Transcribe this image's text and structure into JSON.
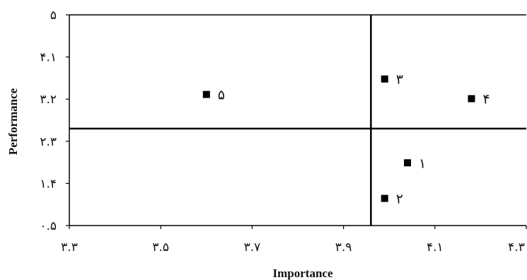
{
  "chart_data": {
    "type": "scatter",
    "title": "",
    "xlabel": "Importance",
    "ylabel": "Performance",
    "xlim": [
      3.3,
      4.3
    ],
    "ylim": [
      0.5,
      5
    ],
    "x_tick_labels": [
      "۳.۳",
      "۳.۵",
      "۳.۷",
      "۳.۹",
      "۴.۱",
      "۴.۳"
    ],
    "y_tick_labels": [
      "۵",
      "۴.۱",
      "۳.۲",
      "۲.۳",
      "۱.۴",
      "۰.۵"
    ],
    "grid": false,
    "quadrant_lines": {
      "x": 3.96,
      "y": 2.57
    },
    "points": [
      {
        "label": "۱",
        "x": 4.04,
        "y": 1.84
      },
      {
        "label": "۲",
        "x": 3.99,
        "y": 1.08
      },
      {
        "label": "۳",
        "x": 3.99,
        "y": 3.63
      },
      {
        "label": "۴",
        "x": 4.18,
        "y": 3.21
      },
      {
        "label": "۵",
        "x": 3.6,
        "y": 3.3
      }
    ],
    "marker_color": "#000000"
  }
}
